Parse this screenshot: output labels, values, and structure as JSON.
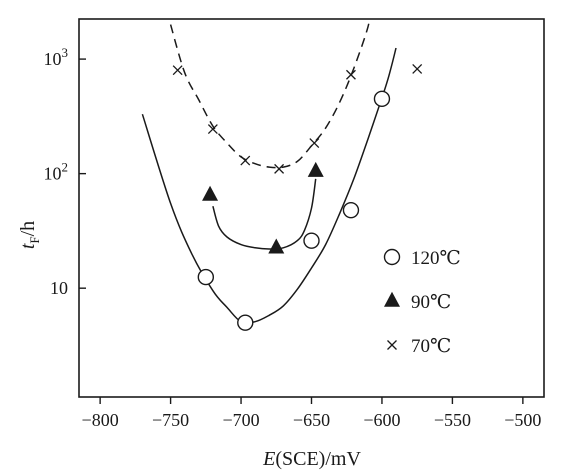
{
  "chart_data": {
    "type": "scatter",
    "title": "",
    "xlabel": {
      "italic": "E",
      "rest": "(SCE)/mV"
    },
    "ylabel": {
      "italic": "t",
      "sub": "F",
      "rest": "/h"
    },
    "xlim": [
      -815,
      -485
    ],
    "ylim_log10": [
      0.05,
      3.35
    ],
    "log_y": true,
    "x_ticks": [
      -800,
      -750,
      -700,
      -650,
      -600,
      -550,
      -500
    ],
    "x_tick_labels": [
      "−800",
      "−750",
      "−700",
      "−650",
      "−600",
      "−550",
      "−500"
    ],
    "y_ticks": [
      {
        "value": 10,
        "base": "10",
        "exp": ""
      },
      {
        "value": 100,
        "base": "10",
        "exp": "2"
      },
      {
        "value": 1000,
        "base": "10",
        "exp": "3"
      }
    ],
    "grid": false,
    "legend_position": "right",
    "series": [
      {
        "name": "120℃",
        "marker": "open-circle",
        "x": [
          -725,
          -697,
          -650,
          -622,
          -600
        ],
        "y": [
          12.5,
          5.0,
          26.0,
          48.0,
          450.0
        ],
        "curve": {
          "style": "solid",
          "x": [
            -770,
            -750,
            -735,
            -720,
            -710,
            -700,
            -690,
            -680,
            -670,
            -660,
            -650,
            -640,
            -630,
            -620,
            -610,
            -600,
            -595,
            -590
          ],
          "y": [
            330,
            55,
            20,
            9.5,
            6.8,
            5.1,
            5.1,
            5.8,
            7.0,
            9.8,
            15.0,
            24.0,
            45.0,
            90.0,
            200.0,
            460.0,
            720.0,
            1250.0
          ]
        }
      },
      {
        "name": "90℃",
        "marker": "filled-triangle",
        "x": [
          -722,
          -675,
          -647
        ],
        "y": [
          65.0,
          22.5,
          105.0
        ],
        "curve": {
          "style": "solid",
          "x": [
            -720,
            -716,
            -710,
            -700,
            -690,
            -680,
            -670,
            -660,
            -655,
            -650,
            -647
          ],
          "y": [
            52.0,
            35.0,
            28.0,
            24.0,
            22.5,
            22.0,
            22.5,
            26.0,
            32.0,
            50.0,
            90.0
          ]
        }
      },
      {
        "name": "70℃",
        "marker": "cross",
        "x": [
          -745,
          -720,
          -697,
          -673,
          -648,
          -622,
          -575
        ],
        "y": [
          800.0,
          245.0,
          130.0,
          110.0,
          185.0,
          730.0,
          820.0
        ],
        "curve": {
          "style": "dashed",
          "x": [
            -750,
            -740,
            -730,
            -720,
            -710,
            -700,
            -690,
            -680,
            -670,
            -660,
            -650,
            -640,
            -630,
            -620,
            -610,
            -607
          ],
          "y": [
            2000,
            760,
            440,
            260,
            185,
            140,
            122,
            114,
            114,
            128,
            175,
            250,
            420,
            830,
            1900,
            3200
          ]
        }
      }
    ]
  }
}
